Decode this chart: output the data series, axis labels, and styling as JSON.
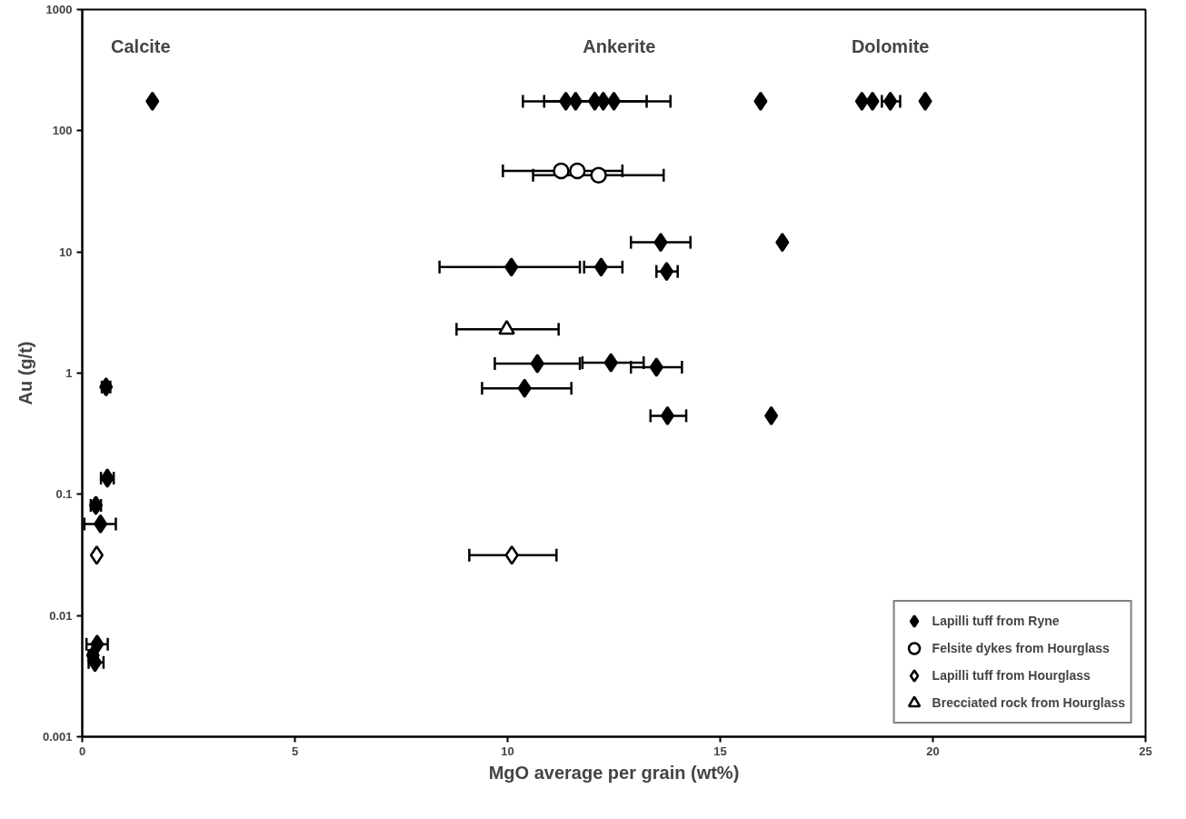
{
  "chart_data": {
    "type": "scatter",
    "xlabel": "MgO average per grain (wt%)",
    "ylabel": "Au (g/t)",
    "xlim": [
      0,
      25
    ],
    "xticks": [
      0,
      5,
      10,
      15,
      20,
      25
    ],
    "ylim": [
      0.001,
      1000
    ],
    "yticks": [
      0.001,
      0.01,
      0.1,
      1,
      10,
      100,
      1000
    ],
    "log": "y",
    "grid": false,
    "legend": "bottom right",
    "annotations": [
      "Calcite",
      "Ankerite",
      "Dolomite"
    ],
    "series": [
      {
        "name": "Lapilli tuff from Ryne",
        "color": "#000000",
        "marker": "diamond",
        "x": [
          1.65,
          11.37,
          11.6,
          12.05,
          12.25,
          12.5,
          15.95,
          18.33,
          18.58,
          19.0,
          19.82,
          13.6,
          16.46,
          10.09,
          12.2,
          13.74,
          10.7,
          12.43,
          13.5,
          10.4,
          13.76,
          16.2,
          0.56,
          0.59,
          0.32,
          0.43,
          0.35,
          0.25,
          0.3
        ],
        "values": [
          175,
          175,
          175,
          175,
          175,
          175,
          175,
          175,
          175,
          175,
          175,
          12,
          12,
          7.5,
          7.5,
          6.9,
          1.2,
          1.22,
          1.12,
          0.75,
          0.445,
          0.445,
          0.77,
          0.136,
          0.081,
          0.057,
          0.0058,
          0.0047,
          0.0041
        ],
        "xerrors": [
          null,
          null,
          [
            10.36,
            13.27
          ],
          null,
          [
            10.86,
            13.83
          ],
          null,
          null,
          null,
          null,
          [
            18.8,
            19.23
          ],
          null,
          [
            12.9,
            14.3
          ],
          null,
          [
            8.4,
            11.7
          ],
          [
            11.8,
            12.7
          ],
          [
            13.5,
            14.0
          ],
          [
            9.7,
            11.7
          ],
          [
            11.76,
            13.2
          ],
          [
            12.9,
            14.1
          ],
          [
            9.4,
            11.5
          ],
          [
            13.36,
            14.2
          ],
          null,
          [
            0.46,
            0.66
          ],
          [
            0.44,
            0.74
          ],
          [
            0.2,
            0.44
          ],
          [
            0.05,
            0.79
          ],
          [
            0.1,
            0.6
          ],
          [
            0.15,
            0.35
          ],
          [
            0.15,
            0.5
          ]
        ]
      },
      {
        "name": "Felsite dykes from Hourglass",
        "color": "#000000",
        "marker": "circle_open",
        "x": [
          11.26,
          11.64,
          12.14
        ],
        "values": [
          46.6,
          46.6,
          43
        ],
        "xerrors": [
          [
            9.89,
            12.7
          ],
          null,
          [
            10.6,
            13.67
          ]
        ]
      },
      {
        "name": "Lapilli tuff from Hourglass",
        "color": "#000000",
        "marker": "diamond_open",
        "x": [
          0.34,
          10.1
        ],
        "values": [
          0.0315,
          0.0315
        ],
        "xerrors": [
          null,
          [
            9.1,
            11.15
          ]
        ]
      },
      {
        "name": "Brecciated rock from Hourglass",
        "color": "#000000",
        "marker": "triangle_open",
        "x": [
          9.98
        ],
        "values": [
          2.3
        ],
        "xerrors": [
          [
            8.8,
            11.2
          ]
        ]
      }
    ]
  }
}
